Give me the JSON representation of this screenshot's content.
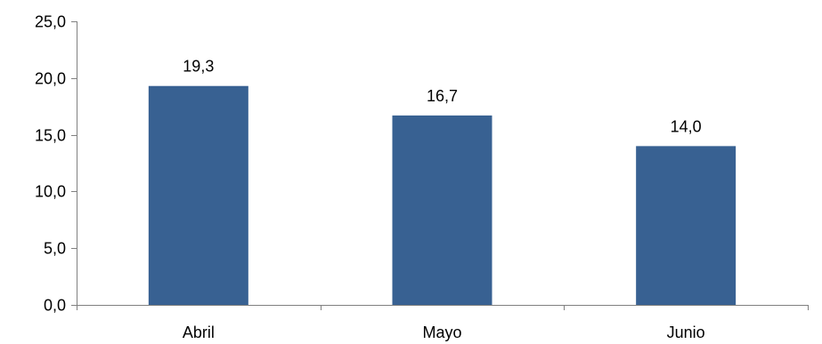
{
  "chart_data": {
    "type": "bar",
    "categories": [
      "Abril",
      "Mayo",
      "Junio"
    ],
    "values": [
      19.3,
      16.7,
      14.0
    ],
    "value_labels": [
      "19,3",
      "16,7",
      "14,0"
    ],
    "ylim": [
      0,
      25
    ],
    "yticks": [
      0,
      5,
      10,
      15,
      20,
      25
    ],
    "ytick_labels": [
      "0,0",
      "5,0",
      "10,0",
      "15,0",
      "20,0",
      "25,0"
    ],
    "title": "",
    "xlabel": "",
    "ylabel": "",
    "grid": false,
    "legend": "none",
    "bar_color": "#386192",
    "axis_color": "#808080"
  }
}
